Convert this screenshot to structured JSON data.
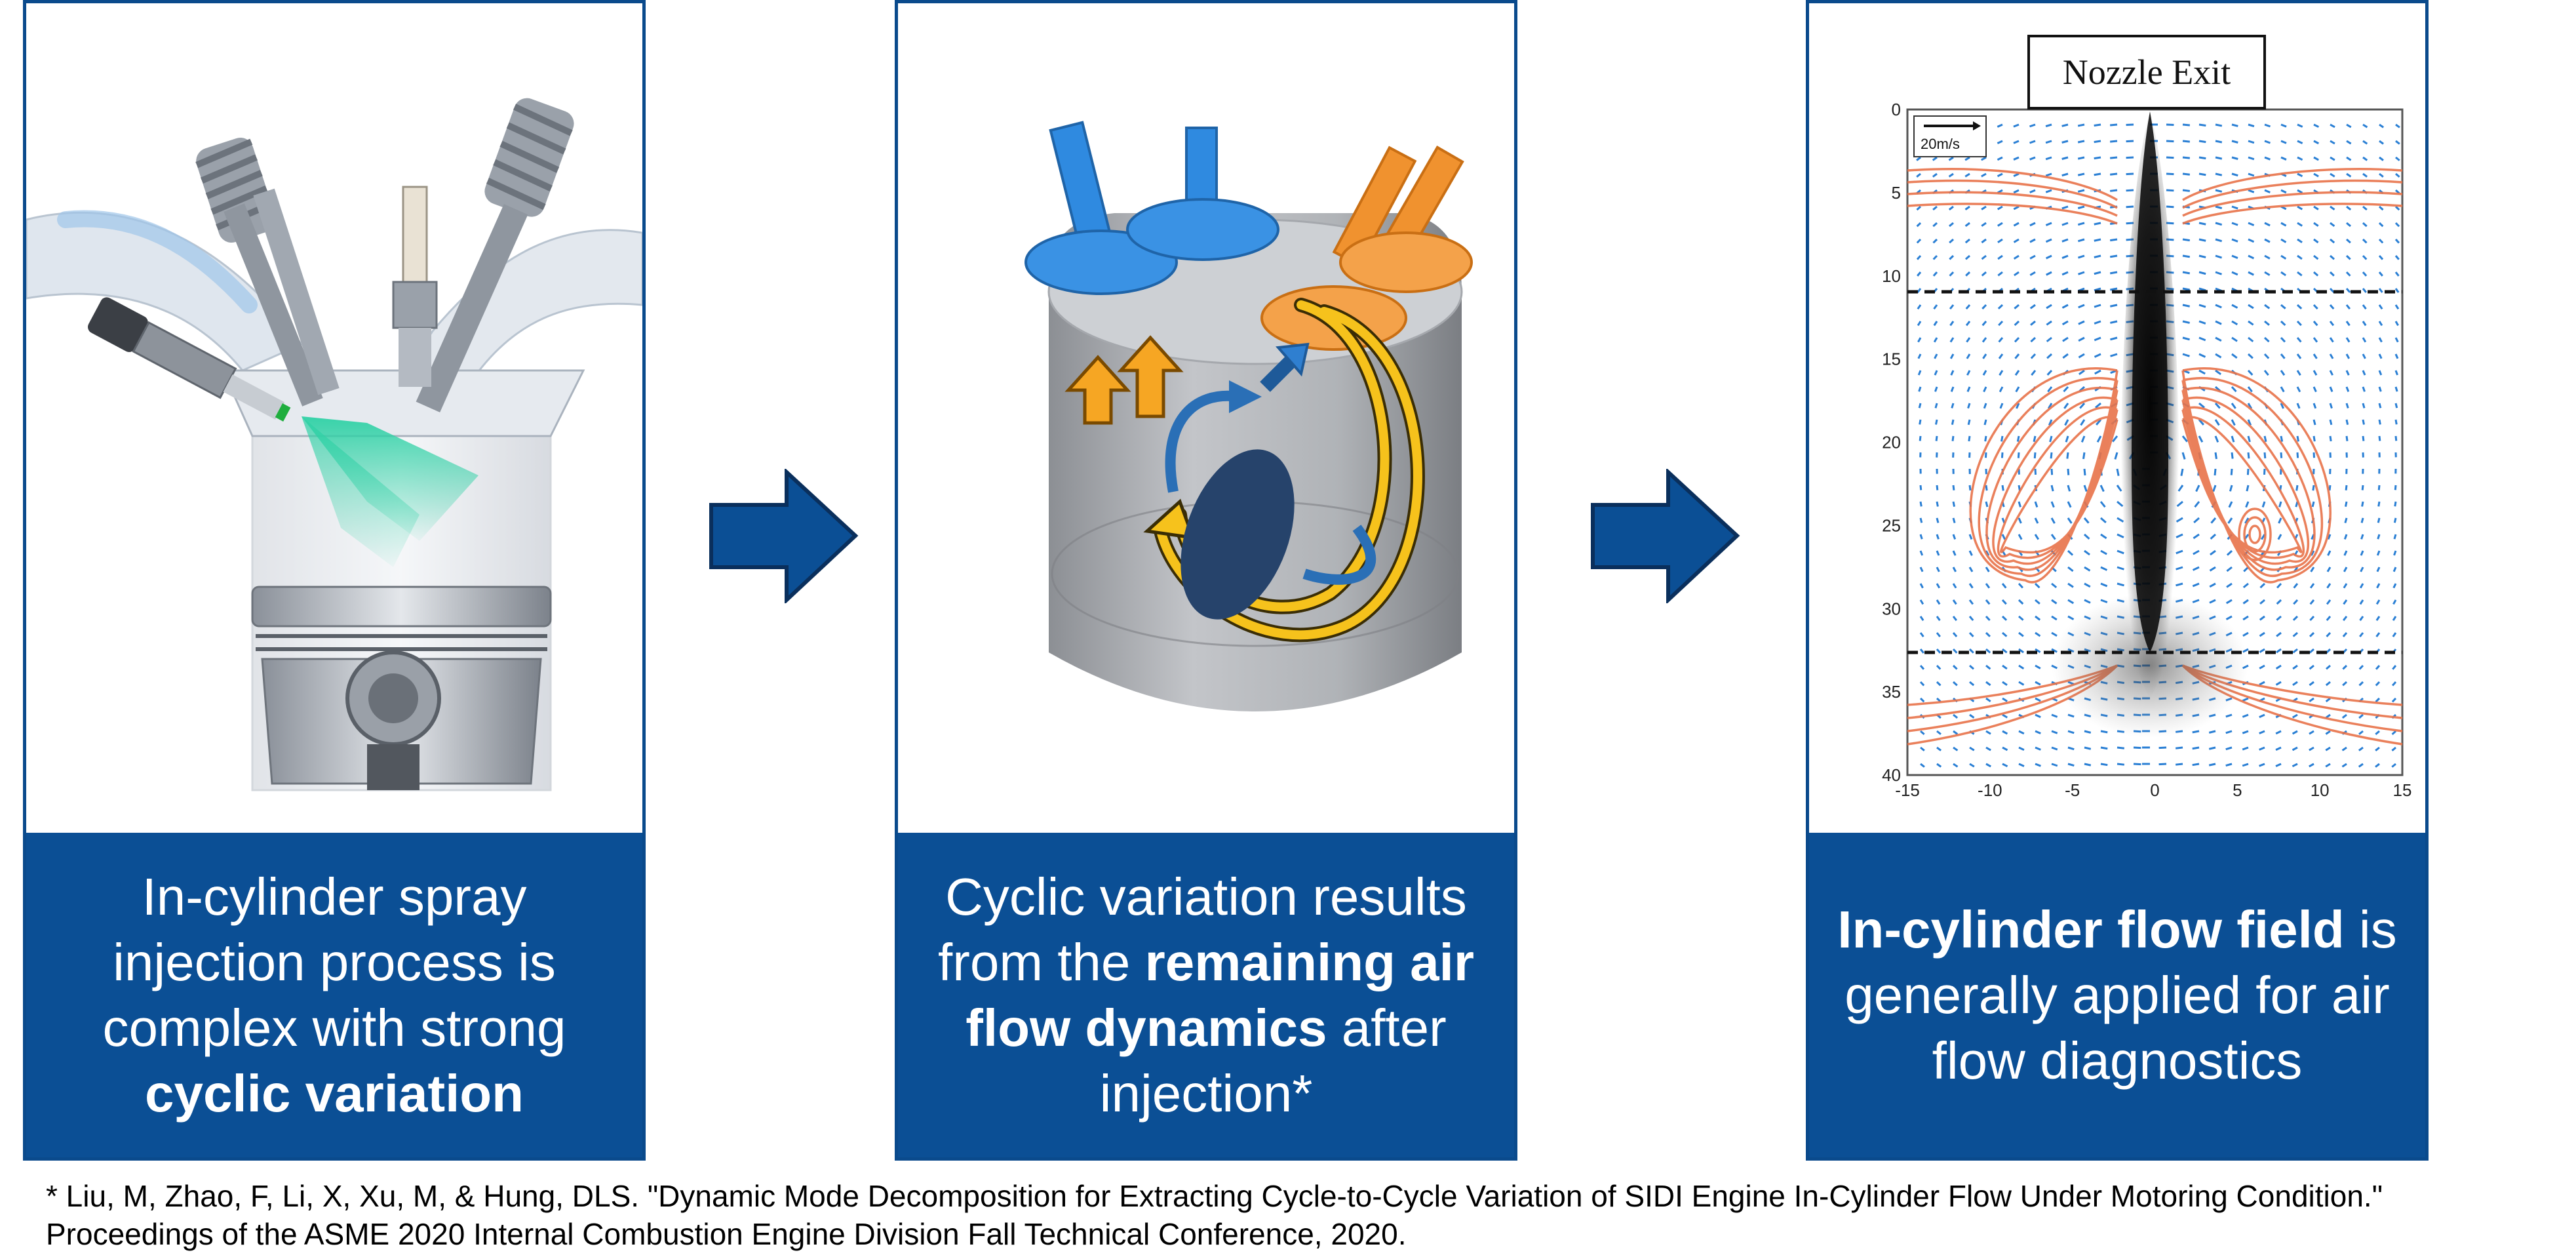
{
  "panels": [
    {
      "caption_plain_1": "In-cylinder spray injection process is complex with strong",
      "caption_bold_1": "cyclic variation",
      "figure_icon": "engine-cylinder-spray-illustration"
    },
    {
      "caption_plain_1": "Cyclic variation results from the",
      "caption_bold_1": "remaining air flow dynamics",
      "caption_plain_2": "after injection*",
      "figure_icon": "cylinder-airflow-3d-illustration"
    },
    {
      "caption_bold_1": "In-cylinder flow field",
      "caption_plain_1": "is generally applied for air flow diagnostics",
      "figure": {
        "label": "Nozzle Exit",
        "scale_label": "20m/s",
        "x_ticks": [
          "-15",
          "-10",
          "-5",
          "0",
          "5",
          "10",
          "15"
        ],
        "y_ticks": [
          "0",
          "5",
          "10",
          "15",
          "20",
          "25",
          "30",
          "35",
          "40"
        ]
      }
    }
  ],
  "citation": {
    "line1": "* Liu, M, Zhao, F, Li, X, Xu, M, & Hung, DLS. \"Dynamic Mode Decomposition for Extracting Cycle-to-Cycle Variation of SIDI Engine In-Cylinder Flow Under Motoring Condition.\"",
    "line2": "Proceedings of the ASME 2020 Internal Combustion Engine Division Fall Technical Conference, 2020."
  },
  "colors": {
    "panel_blue": "#0b4f95",
    "arrow_blue": "#0b4f95",
    "intake_valve": "#2f8ae0",
    "exhaust_valve": "#f0922f",
    "flow_arrow_yellow": "#f6c21c",
    "streamline_orange": "#e8734a",
    "vector_blue": "#2a7fd4"
  }
}
